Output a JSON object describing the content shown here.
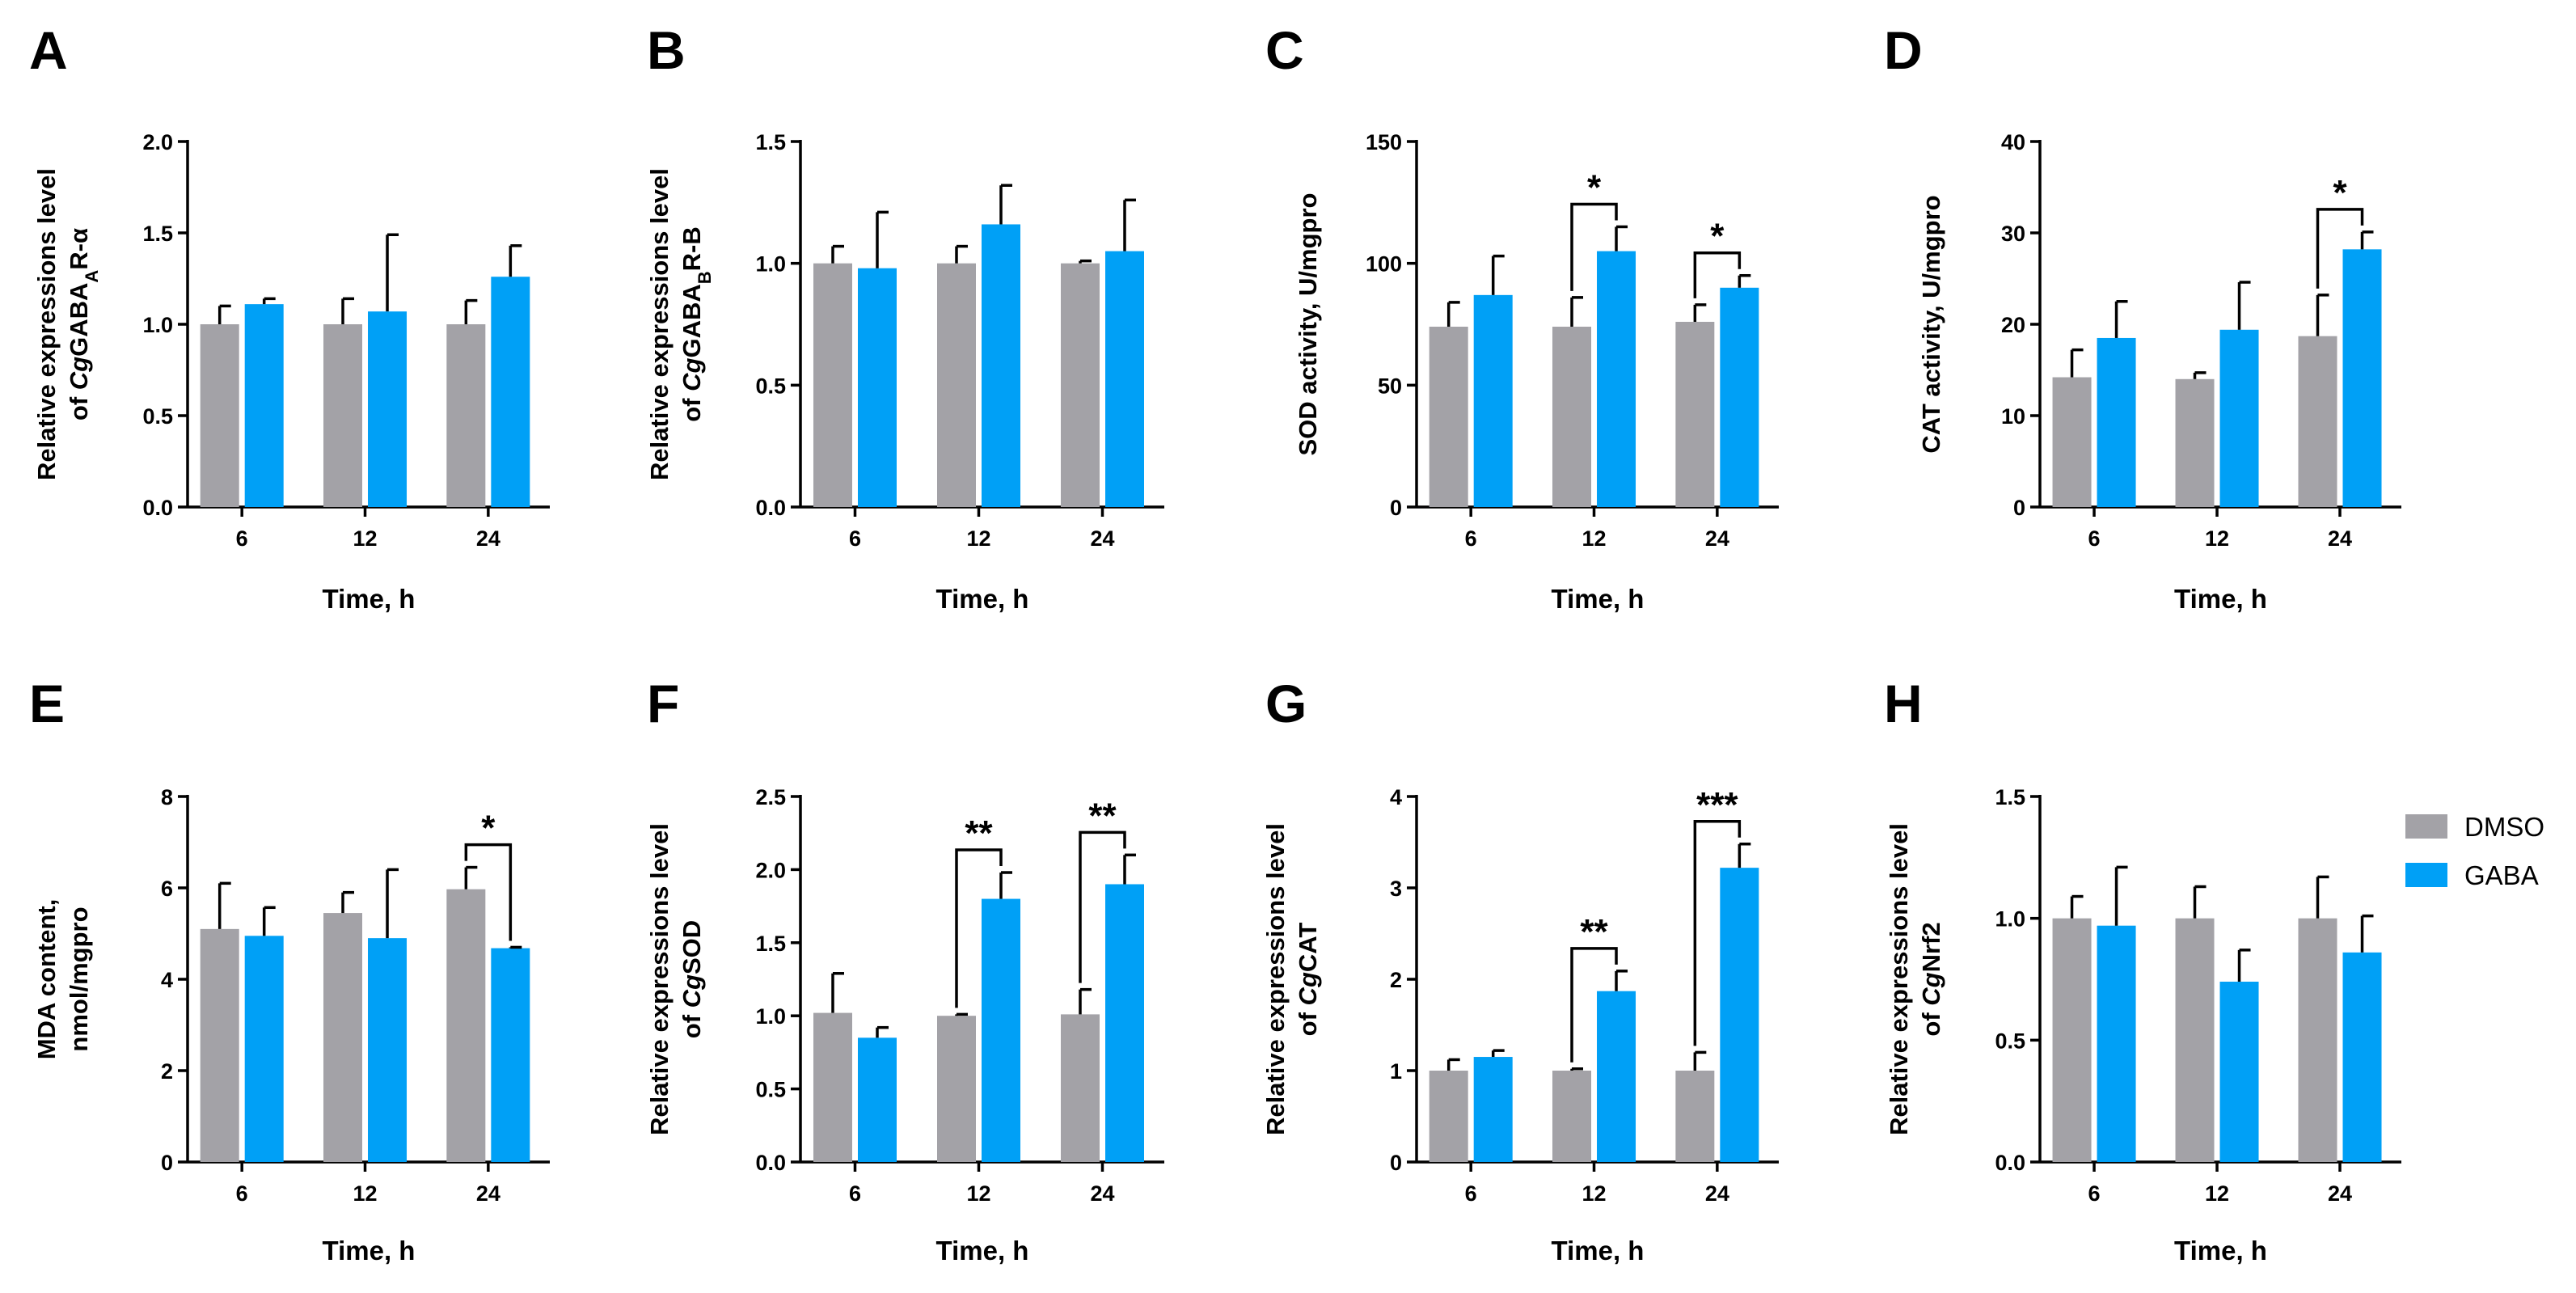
{
  "legend": [
    {
      "name": "DMSO",
      "color": "#a3a2a7"
    },
    {
      "name": "GABA",
      "color": "#00a0f6"
    }
  ],
  "chart_data": [
    {
      "panel": "A",
      "type": "bar",
      "title": "",
      "ylabel_lines": [
        "Relative  expressions level",
        "of CgGABAAR-α"
      ],
      "ylabel_display": [
        "Relative  expressions level",
        [
          {
            "t": "of "
          },
          {
            "t": "Cg",
            "i": true
          },
          {
            "t": "GABA"
          },
          {
            "t": "A",
            "sub": true
          },
          {
            "t": "R-α"
          }
        ]
      ],
      "xlabel": "Time, h",
      "categories": [
        "6",
        "12",
        "24"
      ],
      "ylim": [
        0,
        2.0
      ],
      "yticks": [
        "0.0",
        "0.5",
        "1.0",
        "1.5",
        "2.0"
      ],
      "series": [
        {
          "name": "DMSO",
          "values": [
            1.0,
            1.0,
            1.0
          ],
          "errors": [
            0.1,
            0.14,
            0.13
          ]
        },
        {
          "name": "GABA",
          "values": [
            1.11,
            1.07,
            1.26
          ],
          "errors": [
            0.03,
            0.42,
            0.17
          ]
        }
      ],
      "annotations": []
    },
    {
      "panel": "B",
      "type": "bar",
      "title": "",
      "ylabel_lines": [
        "Relative  expressions level",
        "of CgGABABR-B"
      ],
      "ylabel_display": [
        "Relative  expressions level",
        [
          {
            "t": "of "
          },
          {
            "t": "Cg",
            "i": true
          },
          {
            "t": "GABA"
          },
          {
            "t": "B",
            "sub": true
          },
          {
            "t": "R-B"
          }
        ]
      ],
      "xlabel": "Time, h",
      "categories": [
        "6",
        "12",
        "24"
      ],
      "ylim": [
        0,
        1.5
      ],
      "yticks": [
        "0.0",
        "0.5",
        "1.0",
        "1.5"
      ],
      "series": [
        {
          "name": "DMSO",
          "values": [
            1.0,
            1.0,
            1.0
          ],
          "errors": [
            0.07,
            0.07,
            0.01
          ]
        },
        {
          "name": "GABA",
          "values": [
            0.98,
            1.16,
            1.05
          ],
          "errors": [
            0.23,
            0.16,
            0.21
          ]
        }
      ],
      "annotations": []
    },
    {
      "panel": "C",
      "type": "bar",
      "title": "",
      "ylabel_lines": [
        "SOD activity, U/mgpro"
      ],
      "ylabel_display": [
        "SOD activity, U/mgpro"
      ],
      "xlabel": "Time, h",
      "categories": [
        "6",
        "12",
        "24"
      ],
      "ylim": [
        0,
        150
      ],
      "yticks": [
        "0",
        "50",
        "100",
        "150"
      ],
      "series": [
        {
          "name": "DMSO",
          "values": [
            74,
            74,
            76
          ],
          "errors": [
            10,
            12,
            7
          ]
        },
        {
          "name": "GABA",
          "values": [
            87,
            105,
            90
          ],
          "errors": [
            16,
            10,
            5
          ]
        }
      ],
      "annotations": [
        {
          "category": 1,
          "label": "*"
        },
        {
          "category": 2,
          "label": "*"
        }
      ]
    },
    {
      "panel": "D",
      "type": "bar",
      "title": "",
      "ylabel_lines": [
        "CAT activity, U/mgpro"
      ],
      "ylabel_display": [
        "CAT activity, U/mgpro"
      ],
      "xlabel": "Time, h",
      "categories": [
        "6",
        "12",
        "24"
      ],
      "ylim": [
        0,
        40
      ],
      "yticks": [
        "0",
        "10",
        "20",
        "30",
        "40"
      ],
      "series": [
        {
          "name": "DMSO",
          "values": [
            14.2,
            14.0,
            18.7
          ],
          "errors": [
            3.0,
            0.7,
            4.5
          ]
        },
        {
          "name": "GABA",
          "values": [
            18.5,
            19.4,
            28.2
          ],
          "errors": [
            4.0,
            5.2,
            1.9
          ]
        }
      ],
      "annotations": [
        {
          "category": 2,
          "label": "*"
        }
      ]
    },
    {
      "panel": "E",
      "type": "bar",
      "title": "",
      "ylabel_lines": [
        "MDA content,",
        "nmol/mgpro"
      ],
      "ylabel_display": [
        "MDA content,",
        "nmol/mgpro"
      ],
      "xlabel": "Time, h",
      "categories": [
        "6",
        "12",
        "24"
      ],
      "ylim": [
        0,
        8
      ],
      "yticks": [
        "0",
        "2",
        "4",
        "6",
        "8"
      ],
      "series": [
        {
          "name": "DMSO",
          "values": [
            5.1,
            5.45,
            5.97
          ],
          "errors": [
            1.0,
            0.45,
            0.48
          ]
        },
        {
          "name": "GABA",
          "values": [
            4.95,
            4.9,
            4.68
          ],
          "errors": [
            0.62,
            1.5,
            0.02
          ]
        }
      ],
      "annotations": [
        {
          "category": 2,
          "label": "*"
        }
      ]
    },
    {
      "panel": "F",
      "type": "bar",
      "title": "",
      "ylabel_lines": [
        "Relative  expressions level",
        "of CgSOD"
      ],
      "ylabel_display": [
        "Relative  expressions level",
        [
          {
            "t": "of "
          },
          {
            "t": "Cg",
            "i": true
          },
          {
            "t": "SOD"
          }
        ]
      ],
      "xlabel": "Time, h",
      "categories": [
        "6",
        "12",
        "24"
      ],
      "ylim": [
        0,
        2.5
      ],
      "yticks": [
        "0.0",
        "0.5",
        "1.0",
        "1.5",
        "2.0",
        "2.5"
      ],
      "series": [
        {
          "name": "DMSO",
          "values": [
            1.02,
            1.0,
            1.01
          ],
          "errors": [
            0.27,
            0.01,
            0.17
          ]
        },
        {
          "name": "GABA",
          "values": [
            0.85,
            1.8,
            1.9
          ],
          "errors": [
            0.07,
            0.18,
            0.2
          ]
        }
      ],
      "annotations": [
        {
          "category": 1,
          "label": "**"
        },
        {
          "category": 2,
          "label": "**"
        }
      ]
    },
    {
      "panel": "G",
      "type": "bar",
      "title": "",
      "ylabel_lines": [
        "Relative  expressions level",
        "of CgCAT"
      ],
      "ylabel_display": [
        "Relative  expressions level",
        [
          {
            "t": "of "
          },
          {
            "t": "Cg",
            "i": true
          },
          {
            "t": "CAT"
          }
        ]
      ],
      "xlabel": "Time, h",
      "categories": [
        "6",
        "12",
        "24"
      ],
      "ylim": [
        0,
        4
      ],
      "yticks": [
        "0",
        "1",
        "2",
        "3",
        "4"
      ],
      "series": [
        {
          "name": "DMSO",
          "values": [
            1.0,
            1.0,
            1.0
          ],
          "errors": [
            0.12,
            0.02,
            0.2
          ]
        },
        {
          "name": "GABA",
          "values": [
            1.15,
            1.87,
            3.22
          ],
          "errors": [
            0.07,
            0.22,
            0.26
          ]
        }
      ],
      "annotations": [
        {
          "category": 1,
          "label": "**"
        },
        {
          "category": 2,
          "label": "***"
        }
      ]
    },
    {
      "panel": "H",
      "type": "bar",
      "title": "",
      "ylabel_lines": [
        "Relative  expressions level",
        "of CgNrf2"
      ],
      "ylabel_display": [
        "Relative  expressions level",
        [
          {
            "t": "of "
          },
          {
            "t": "Cg",
            "i": true
          },
          {
            "t": "Nrf2"
          }
        ]
      ],
      "xlabel": "Time, h",
      "categories": [
        "6",
        "12",
        "24"
      ],
      "ylim": [
        0,
        1.5
      ],
      "yticks": [
        "0.0",
        "0.5",
        "1.0",
        "1.5"
      ],
      "series": [
        {
          "name": "DMSO",
          "values": [
            1.0,
            1.0,
            1.0
          ],
          "errors": [
            0.09,
            0.13,
            0.17
          ]
        },
        {
          "name": "GABA",
          "values": [
            0.97,
            0.74,
            0.86
          ],
          "errors": [
            0.24,
            0.13,
            0.15
          ]
        }
      ],
      "annotations": []
    }
  ]
}
